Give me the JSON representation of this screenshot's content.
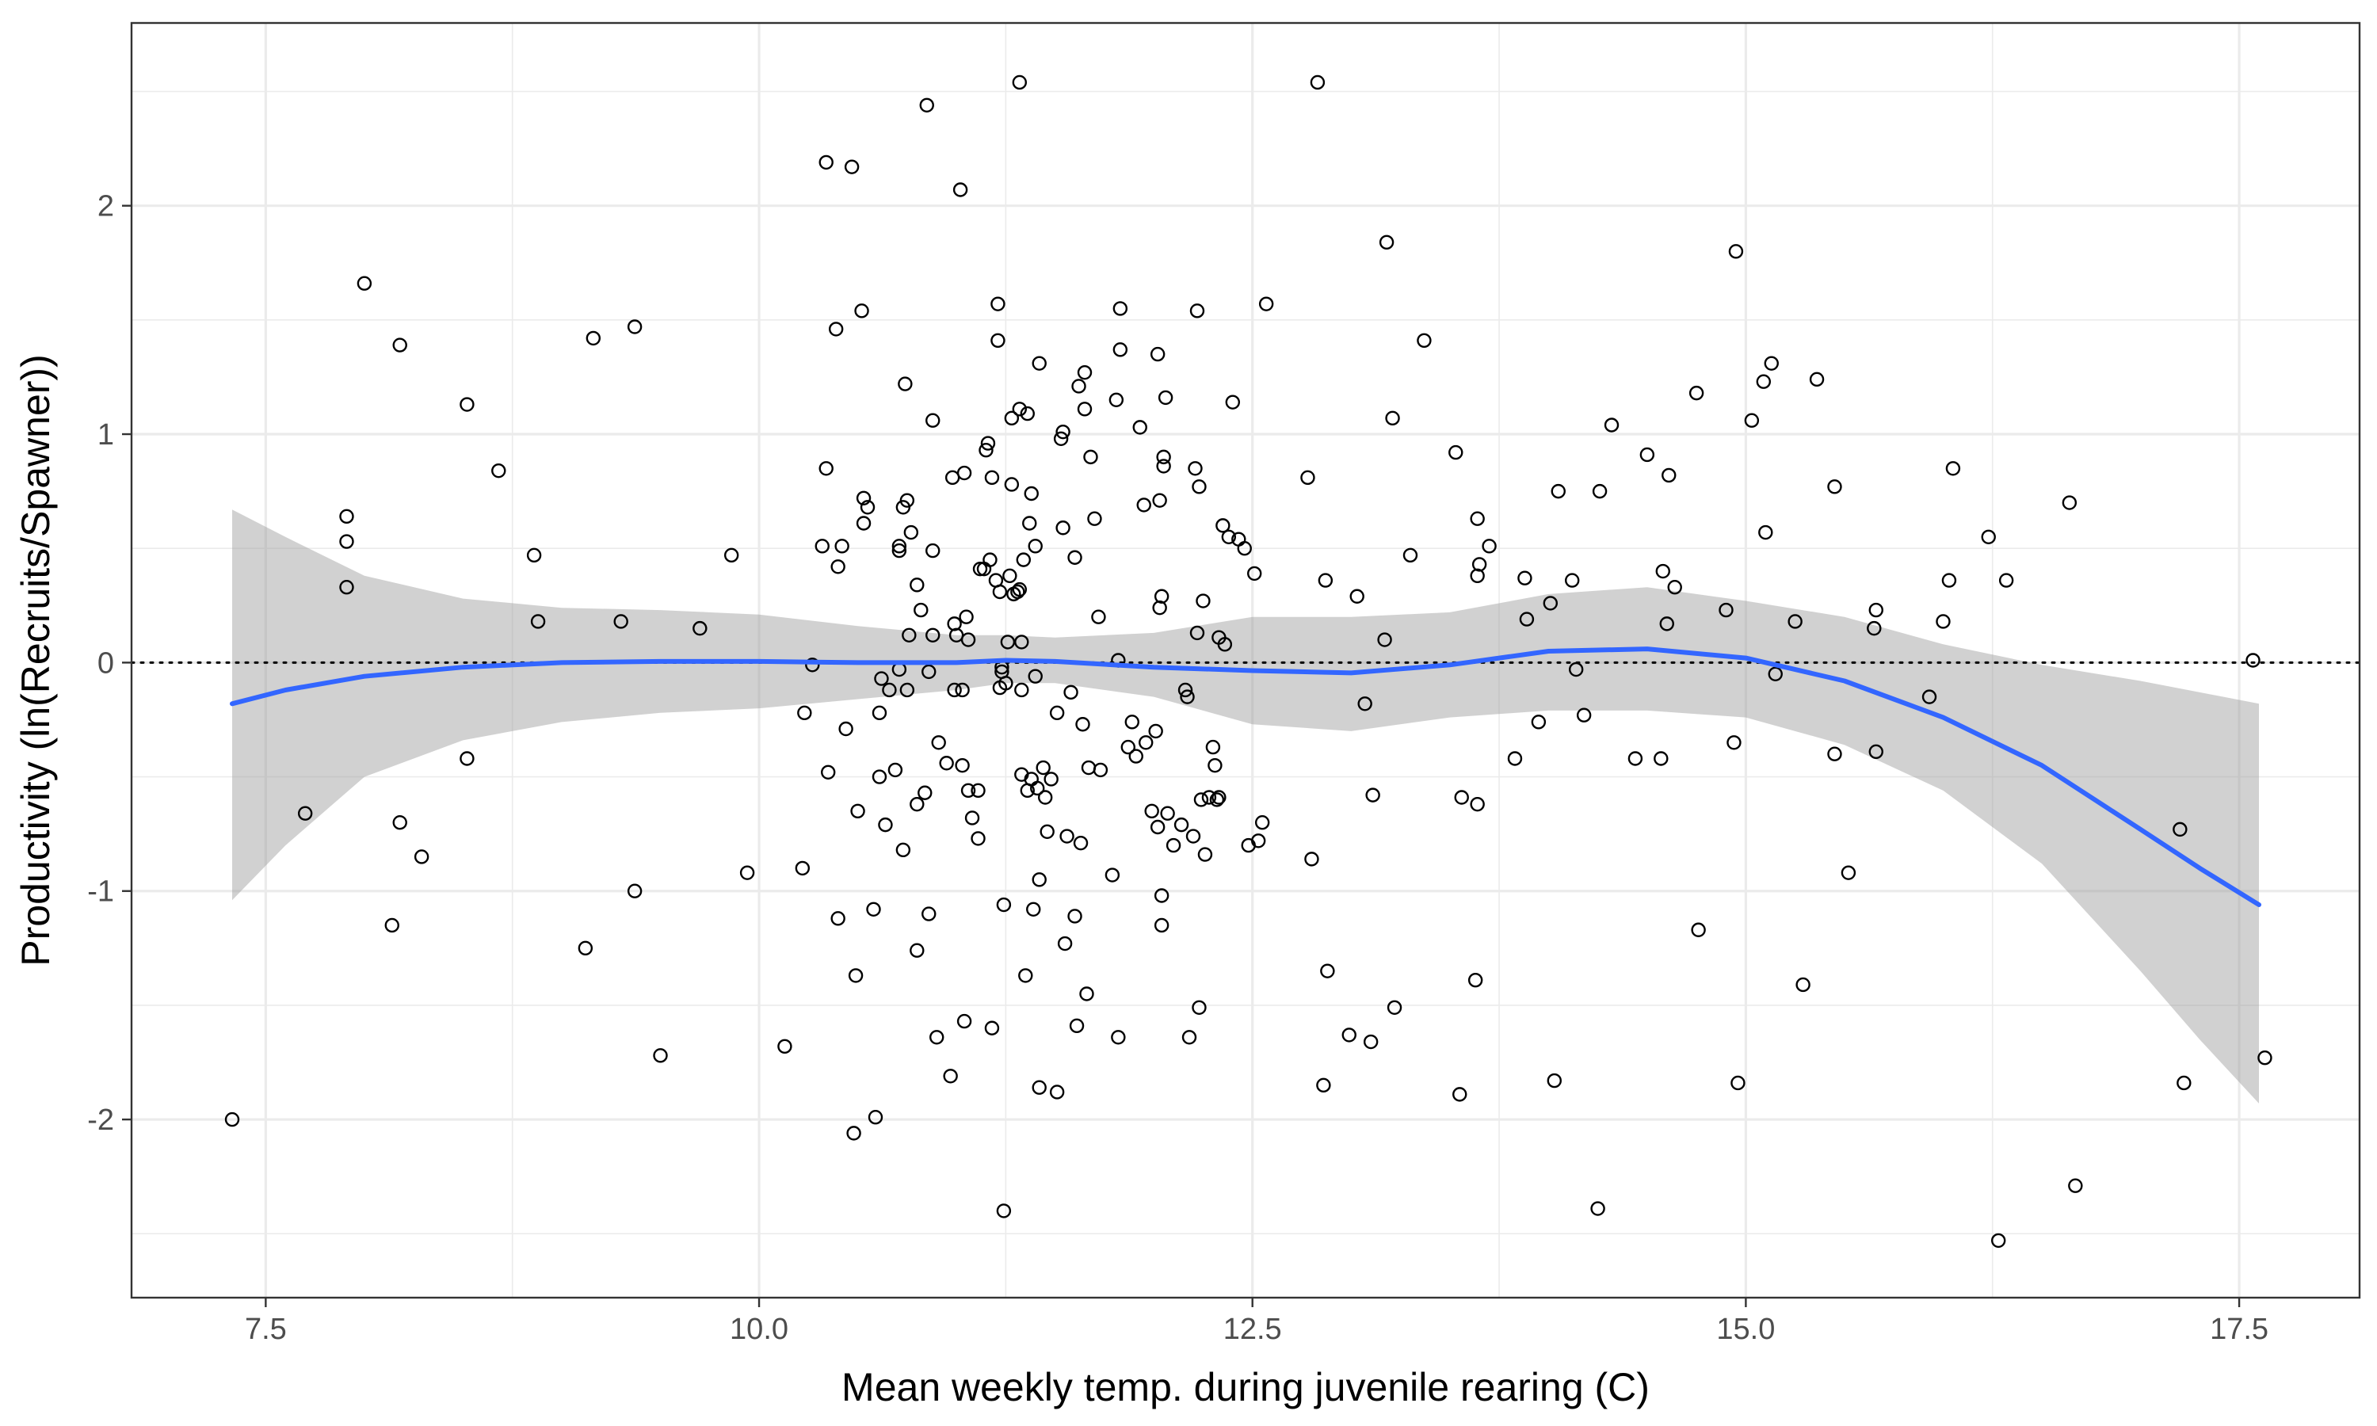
{
  "chart_data": {
    "type": "scatter",
    "title": "",
    "xlabel": "Mean weekly temp. during juvenile rearing (C)",
    "ylabel": "Productivity (ln(Recruits/Spawner))",
    "xlim": [
      6.82,
      18.11
    ],
    "ylim": [
      -2.78,
      2.8
    ],
    "x_ticks": [
      7.5,
      10.0,
      12.5,
      15.0,
      17.5
    ],
    "x_tick_labels": [
      "7.5",
      "10.0",
      "12.5",
      "15.0",
      "17.5"
    ],
    "y_ticks": [
      -2,
      -1,
      0,
      1,
      2
    ],
    "y_tick_labels": [
      "-2",
      "-1",
      "0",
      "1",
      "2"
    ],
    "grid": true,
    "reference_line": {
      "y": 0,
      "style": "dotted",
      "color": "#000000"
    },
    "points": [
      {
        "x": 7.33,
        "y": -2.0
      },
      {
        "x": 7.7,
        "y": -0.66
      },
      {
        "x": 7.91,
        "y": 0.64
      },
      {
        "x": 7.91,
        "y": 0.53
      },
      {
        "x": 7.91,
        "y": 0.33
      },
      {
        "x": 8.0,
        "y": 1.66
      },
      {
        "x": 8.14,
        "y": -1.15
      },
      {
        "x": 8.18,
        "y": 1.39
      },
      {
        "x": 8.18,
        "y": -0.7
      },
      {
        "x": 8.29,
        "y": -0.85
      },
      {
        "x": 8.52,
        "y": 1.13
      },
      {
        "x": 8.52,
        "y": -0.42
      },
      {
        "x": 8.68,
        "y": 0.84
      },
      {
        "x": 8.86,
        "y": 0.47
      },
      {
        "x": 8.88,
        "y": 0.18
      },
      {
        "x": 9.12,
        "y": -1.25
      },
      {
        "x": 9.16,
        "y": 1.42
      },
      {
        "x": 9.3,
        "y": 0.18
      },
      {
        "x": 9.37,
        "y": 1.47
      },
      {
        "x": 9.37,
        "y": -1.0
      },
      {
        "x": 9.5,
        "y": -1.72
      },
      {
        "x": 9.7,
        "y": 0.15
      },
      {
        "x": 9.86,
        "y": 0.47
      },
      {
        "x": 9.94,
        "y": -0.92
      },
      {
        "x": 10.13,
        "y": -1.68
      },
      {
        "x": 10.22,
        "y": -0.9
      },
      {
        "x": 10.23,
        "y": -0.22
      },
      {
        "x": 10.27,
        "y": -0.01
      },
      {
        "x": 10.32,
        "y": 0.51
      },
      {
        "x": 10.34,
        "y": 2.19
      },
      {
        "x": 10.35,
        "y": -0.48
      },
      {
        "x": 10.34,
        "y": 0.85
      },
      {
        "x": 10.39,
        "y": 1.46
      },
      {
        "x": 10.4,
        "y": -1.12
      },
      {
        "x": 10.4,
        "y": 0.42
      },
      {
        "x": 10.42,
        "y": 0.51
      },
      {
        "x": 10.44,
        "y": -0.29
      },
      {
        "x": 10.47,
        "y": 2.17
      },
      {
        "x": 10.48,
        "y": -2.06
      },
      {
        "x": 10.49,
        "y": -1.37
      },
      {
        "x": 10.5,
        "y": -0.65
      },
      {
        "x": 10.52,
        "y": 1.54
      },
      {
        "x": 10.53,
        "y": 0.72
      },
      {
        "x": 10.53,
        "y": 0.61
      },
      {
        "x": 10.55,
        "y": 0.68
      },
      {
        "x": 10.58,
        "y": -1.08
      },
      {
        "x": 10.59,
        "y": -1.99
      },
      {
        "x": 10.61,
        "y": -0.5
      },
      {
        "x": 10.61,
        "y": -0.22
      },
      {
        "x": 10.62,
        "y": -0.07
      },
      {
        "x": 10.64,
        "y": -0.71
      },
      {
        "x": 10.66,
        "y": -0.12
      },
      {
        "x": 10.69,
        "y": -0.47
      },
      {
        "x": 10.71,
        "y": 0.49
      },
      {
        "x": 10.71,
        "y": 0.51
      },
      {
        "x": 10.71,
        "y": -0.03
      },
      {
        "x": 10.73,
        "y": 0.68
      },
      {
        "x": 10.73,
        "y": -0.82
      },
      {
        "x": 10.74,
        "y": 1.22
      },
      {
        "x": 10.75,
        "y": 0.71
      },
      {
        "x": 10.75,
        "y": -0.12
      },
      {
        "x": 10.76,
        "y": 0.12
      },
      {
        "x": 10.77,
        "y": 0.57
      },
      {
        "x": 10.8,
        "y": 0.34
      },
      {
        "x": 10.8,
        "y": -0.62
      },
      {
        "x": 10.8,
        "y": -1.26
      },
      {
        "x": 10.82,
        "y": 0.23
      },
      {
        "x": 10.84,
        "y": -0.57
      },
      {
        "x": 10.85,
        "y": 2.44
      },
      {
        "x": 10.86,
        "y": -0.04
      },
      {
        "x": 10.86,
        "y": -1.1
      },
      {
        "x": 10.88,
        "y": 1.06
      },
      {
        "x": 10.88,
        "y": 0.49
      },
      {
        "x": 10.88,
        "y": 0.12
      },
      {
        "x": 10.9,
        "y": -1.64
      },
      {
        "x": 10.91,
        "y": -0.35
      },
      {
        "x": 10.95,
        "y": -0.44
      },
      {
        "x": 10.97,
        "y": -1.81
      },
      {
        "x": 10.98,
        "y": 0.81
      },
      {
        "x": 10.99,
        "y": 0.17
      },
      {
        "x": 10.99,
        "y": -0.12
      },
      {
        "x": 11.0,
        "y": 0.12
      },
      {
        "x": 11.02,
        "y": 2.07
      },
      {
        "x": 11.03,
        "y": -0.45
      },
      {
        "x": 11.03,
        "y": -0.12
      },
      {
        "x": 11.04,
        "y": 0.83
      },
      {
        "x": 11.04,
        "y": -1.57
      },
      {
        "x": 11.05,
        "y": 0.2
      },
      {
        "x": 11.06,
        "y": -0.56
      },
      {
        "x": 11.06,
        "y": 0.1
      },
      {
        "x": 11.08,
        "y": -0.68
      },
      {
        "x": 11.11,
        "y": -0.77
      },
      {
        "x": 11.11,
        "y": -0.56
      },
      {
        "x": 11.12,
        "y": 0.41
      },
      {
        "x": 11.14,
        "y": 0.41
      },
      {
        "x": 11.15,
        "y": 0.93
      },
      {
        "x": 11.16,
        "y": 0.96
      },
      {
        "x": 11.17,
        "y": 0.45
      },
      {
        "x": 11.18,
        "y": -1.6
      },
      {
        "x": 11.18,
        "y": 0.81
      },
      {
        "x": 11.2,
        "y": 0.36
      },
      {
        "x": 11.21,
        "y": 1.57
      },
      {
        "x": 11.21,
        "y": 1.41
      },
      {
        "x": 11.22,
        "y": 0.31
      },
      {
        "x": 11.22,
        "y": -0.11
      },
      {
        "x": 11.23,
        "y": -0.04
      },
      {
        "x": 11.23,
        "y": -0.02
      },
      {
        "x": 11.24,
        "y": -1.06
      },
      {
        "x": 11.24,
        "y": -2.4
      },
      {
        "x": 11.25,
        "y": -0.09
      },
      {
        "x": 11.26,
        "y": 0.09
      },
      {
        "x": 11.27,
        "y": 0.38
      },
      {
        "x": 11.28,
        "y": 0.78
      },
      {
        "x": 11.28,
        "y": 1.07
      },
      {
        "x": 11.29,
        "y": 0.3
      },
      {
        "x": 11.31,
        "y": 0.31
      },
      {
        "x": 11.32,
        "y": 2.54
      },
      {
        "x": 11.32,
        "y": 1.11
      },
      {
        "x": 11.32,
        "y": 0.32
      },
      {
        "x": 11.33,
        "y": -0.12
      },
      {
        "x": 11.33,
        "y": 0.09
      },
      {
        "x": 11.33,
        "y": -0.49
      },
      {
        "x": 11.34,
        "y": 0.45
      },
      {
        "x": 11.35,
        "y": -1.37
      },
      {
        "x": 11.36,
        "y": 1.09
      },
      {
        "x": 11.36,
        "y": -0.56
      },
      {
        "x": 11.37,
        "y": 0.61
      },
      {
        "x": 11.38,
        "y": 0.74
      },
      {
        "x": 11.38,
        "y": -0.51
      },
      {
        "x": 11.39,
        "y": -1.08
      },
      {
        "x": 11.4,
        "y": 0.51
      },
      {
        "x": 11.4,
        "y": -0.06
      },
      {
        "x": 11.41,
        "y": -0.55
      },
      {
        "x": 11.42,
        "y": 1.31
      },
      {
        "x": 11.42,
        "y": -0.95
      },
      {
        "x": 11.42,
        "y": -1.86
      },
      {
        "x": 11.44,
        "y": -0.46
      },
      {
        "x": 11.45,
        "y": -0.59
      },
      {
        "x": 11.46,
        "y": -0.74
      },
      {
        "x": 11.48,
        "y": -0.51
      },
      {
        "x": 11.51,
        "y": -0.22
      },
      {
        "x": 11.51,
        "y": -1.88
      },
      {
        "x": 11.53,
        "y": 0.98
      },
      {
        "x": 11.54,
        "y": 1.01
      },
      {
        "x": 11.54,
        "y": 0.59
      },
      {
        "x": 11.55,
        "y": -1.23
      },
      {
        "x": 11.56,
        "y": -0.76
      },
      {
        "x": 11.58,
        "y": -0.13
      },
      {
        "x": 11.6,
        "y": -1.11
      },
      {
        "x": 11.6,
        "y": 0.46
      },
      {
        "x": 11.61,
        "y": -1.59
      },
      {
        "x": 11.62,
        "y": 1.21
      },
      {
        "x": 11.63,
        "y": -0.79
      },
      {
        "x": 11.64,
        "y": -0.27
      },
      {
        "x": 11.65,
        "y": 1.27
      },
      {
        "x": 11.65,
        "y": 1.11
      },
      {
        "x": 11.66,
        "y": -1.45
      },
      {
        "x": 11.67,
        "y": -0.46
      },
      {
        "x": 11.68,
        "y": 0.9
      },
      {
        "x": 11.7,
        "y": 0.63
      },
      {
        "x": 11.72,
        "y": 0.2
      },
      {
        "x": 11.73,
        "y": -0.47
      },
      {
        "x": 11.79,
        "y": -0.93
      },
      {
        "x": 11.81,
        "y": 1.15
      },
      {
        "x": 11.82,
        "y": -1.64
      },
      {
        "x": 11.82,
        "y": 0.01
      },
      {
        "x": 11.83,
        "y": 1.55
      },
      {
        "x": 11.83,
        "y": 1.37
      },
      {
        "x": 11.87,
        "y": -0.37
      },
      {
        "x": 11.89,
        "y": -0.26
      },
      {
        "x": 11.91,
        "y": -0.41
      },
      {
        "x": 11.93,
        "y": 1.03
      },
      {
        "x": 11.95,
        "y": 0.69
      },
      {
        "x": 11.96,
        "y": -0.35
      },
      {
        "x": 11.99,
        "y": -0.65
      },
      {
        "x": 12.01,
        "y": -0.3
      },
      {
        "x": 12.02,
        "y": -0.72
      },
      {
        "x": 12.02,
        "y": 1.35
      },
      {
        "x": 12.03,
        "y": 0.71
      },
      {
        "x": 12.03,
        "y": 0.24
      },
      {
        "x": 12.04,
        "y": 0.29
      },
      {
        "x": 12.04,
        "y": -1.02
      },
      {
        "x": 12.04,
        "y": -1.15
      },
      {
        "x": 12.05,
        "y": 0.86
      },
      {
        "x": 12.05,
        "y": 0.9
      },
      {
        "x": 12.06,
        "y": 1.16
      },
      {
        "x": 12.07,
        "y": -0.66
      },
      {
        "x": 12.1,
        "y": -0.8
      },
      {
        "x": 12.14,
        "y": -0.71
      },
      {
        "x": 12.16,
        "y": -0.12
      },
      {
        "x": 12.17,
        "y": -0.15
      },
      {
        "x": 12.18,
        "y": -1.64
      },
      {
        "x": 12.2,
        "y": -0.76
      },
      {
        "x": 12.21,
        "y": 0.85
      },
      {
        "x": 12.22,
        "y": 0.13
      },
      {
        "x": 12.22,
        "y": 1.54
      },
      {
        "x": 12.23,
        "y": 0.77
      },
      {
        "x": 12.23,
        "y": -1.51
      },
      {
        "x": 12.24,
        "y": -0.6
      },
      {
        "x": 12.25,
        "y": 0.27
      },
      {
        "x": 12.26,
        "y": -0.84
      },
      {
        "x": 12.28,
        "y": -0.59
      },
      {
        "x": 12.3,
        "y": -0.37
      },
      {
        "x": 12.31,
        "y": -0.45
      },
      {
        "x": 12.32,
        "y": -0.6
      },
      {
        "x": 12.33,
        "y": -0.59
      },
      {
        "x": 12.33,
        "y": 0.11
      },
      {
        "x": 12.35,
        "y": 0.6
      },
      {
        "x": 12.36,
        "y": 0.08
      },
      {
        "x": 12.38,
        "y": 0.55
      },
      {
        "x": 12.4,
        "y": 1.14
      },
      {
        "x": 12.43,
        "y": 0.54
      },
      {
        "x": 12.46,
        "y": 0.5
      },
      {
        "x": 12.48,
        "y": -0.8
      },
      {
        "x": 12.51,
        "y": 0.39
      },
      {
        "x": 12.53,
        "y": -0.78
      },
      {
        "x": 12.55,
        "y": -0.7
      },
      {
        "x": 12.57,
        "y": 1.57
      },
      {
        "x": 12.78,
        "y": 0.81
      },
      {
        "x": 12.8,
        "y": -0.86
      },
      {
        "x": 12.83,
        "y": 2.54
      },
      {
        "x": 12.86,
        "y": -1.85
      },
      {
        "x": 12.87,
        "y": 0.36
      },
      {
        "x": 12.88,
        "y": -1.35
      },
      {
        "x": 12.99,
        "y": -1.63
      },
      {
        "x": 13.03,
        "y": 0.29
      },
      {
        "x": 13.07,
        "y": -0.18
      },
      {
        "x": 13.1,
        "y": -1.66
      },
      {
        "x": 13.11,
        "y": -0.58
      },
      {
        "x": 13.17,
        "y": 0.1
      },
      {
        "x": 13.18,
        "y": 1.84
      },
      {
        "x": 13.21,
        "y": 1.07
      },
      {
        "x": 13.22,
        "y": -1.51
      },
      {
        "x": 13.3,
        "y": 0.47
      },
      {
        "x": 13.37,
        "y": 1.41
      },
      {
        "x": 13.53,
        "y": 0.92
      },
      {
        "x": 13.55,
        "y": -1.89
      },
      {
        "x": 13.56,
        "y": -0.59
      },
      {
        "x": 13.63,
        "y": -1.39
      },
      {
        "x": 13.64,
        "y": 0.63
      },
      {
        "x": 13.64,
        "y": 0.38
      },
      {
        "x": 13.64,
        "y": -0.62
      },
      {
        "x": 13.65,
        "y": 0.43
      },
      {
        "x": 13.7,
        "y": 0.51
      },
      {
        "x": 13.83,
        "y": -0.42
      },
      {
        "x": 13.88,
        "y": 0.37
      },
      {
        "x": 13.89,
        "y": 0.19
      },
      {
        "x": 13.95,
        "y": -0.26
      },
      {
        "x": 14.01,
        "y": 0.26
      },
      {
        "x": 14.03,
        "y": -1.83
      },
      {
        "x": 14.05,
        "y": 0.75
      },
      {
        "x": 14.12,
        "y": 0.36
      },
      {
        "x": 14.14,
        "y": -0.03
      },
      {
        "x": 14.18,
        "y": -0.23
      },
      {
        "x": 14.25,
        "y": -2.39
      },
      {
        "x": 14.26,
        "y": 0.75
      },
      {
        "x": 14.32,
        "y": 1.04
      },
      {
        "x": 14.44,
        "y": -0.42
      },
      {
        "x": 14.5,
        "y": 0.91
      },
      {
        "x": 14.57,
        "y": -0.42
      },
      {
        "x": 14.58,
        "y": 0.4
      },
      {
        "x": 14.6,
        "y": 0.17
      },
      {
        "x": 14.61,
        "y": 0.82
      },
      {
        "x": 14.64,
        "y": 0.33
      },
      {
        "x": 14.75,
        "y": 1.18
      },
      {
        "x": 14.76,
        "y": -1.17
      },
      {
        "x": 14.9,
        "y": 0.23
      },
      {
        "x": 14.94,
        "y": -0.35
      },
      {
        "x": 14.95,
        "y": 1.8
      },
      {
        "x": 14.96,
        "y": -1.84
      },
      {
        "x": 15.03,
        "y": 1.06
      },
      {
        "x": 15.09,
        "y": 1.23
      },
      {
        "x": 15.1,
        "y": 0.57
      },
      {
        "x": 15.13,
        "y": 1.31
      },
      {
        "x": 15.15,
        "y": -0.05
      },
      {
        "x": 15.25,
        "y": 0.18
      },
      {
        "x": 15.29,
        "y": -1.41
      },
      {
        "x": 15.36,
        "y": 1.24
      },
      {
        "x": 15.45,
        "y": 0.77
      },
      {
        "x": 15.45,
        "y": -0.4
      },
      {
        "x": 15.52,
        "y": -0.92
      },
      {
        "x": 15.65,
        "y": 0.15
      },
      {
        "x": 15.66,
        "y": 0.23
      },
      {
        "x": 15.66,
        "y": -0.39
      },
      {
        "x": 15.93,
        "y": -0.15
      },
      {
        "x": 16.0,
        "y": 0.18
      },
      {
        "x": 16.03,
        "y": 0.36
      },
      {
        "x": 16.05,
        "y": 0.85
      },
      {
        "x": 16.23,
        "y": 0.55
      },
      {
        "x": 16.28,
        "y": -2.53
      },
      {
        "x": 16.32,
        "y": 0.36
      },
      {
        "x": 16.64,
        "y": 0.7
      },
      {
        "x": 16.67,
        "y": -2.29
      },
      {
        "x": 17.2,
        "y": -0.73
      },
      {
        "x": 17.22,
        "y": -1.84
      },
      {
        "x": 17.57,
        "y": 0.01
      },
      {
        "x": 17.63,
        "y": -1.73
      }
    ],
    "smooth_line": {
      "color": "#3366ff",
      "x": [
        7.33,
        7.6,
        8.0,
        8.5,
        9.0,
        9.5,
        10.0,
        10.5,
        11.0,
        11.25,
        11.5,
        12.0,
        12.5,
        13.0,
        13.5,
        14.0,
        14.5,
        15.0,
        15.5,
        16.0,
        16.5,
        17.0,
        17.3,
        17.6
      ],
      "y": [
        -0.18,
        -0.12,
        -0.06,
        -0.02,
        0.0,
        0.005,
        0.005,
        0.0,
        0.0,
        0.01,
        0.005,
        -0.02,
        -0.035,
        -0.045,
        -0.01,
        0.05,
        0.06,
        0.02,
        -0.08,
        -0.24,
        -0.45,
        -0.73,
        -0.9,
        -1.06
      ]
    },
    "confidence_band": {
      "color": "#999999",
      "opacity": 0.45,
      "x": [
        7.33,
        7.6,
        8.0,
        8.5,
        9.0,
        9.5,
        10.0,
        10.5,
        11.0,
        11.25,
        11.5,
        12.0,
        12.5,
        13.0,
        13.5,
        14.0,
        14.5,
        15.0,
        15.5,
        16.0,
        16.5,
        17.0,
        17.3,
        17.6
      ],
      "upper": [
        0.67,
        0.55,
        0.38,
        0.28,
        0.24,
        0.23,
        0.21,
        0.16,
        0.12,
        0.12,
        0.11,
        0.13,
        0.2,
        0.2,
        0.22,
        0.3,
        0.33,
        0.27,
        0.2,
        0.08,
        -0.01,
        -0.08,
        -0.13,
        -0.18
      ],
      "lower": [
        -1.04,
        -0.8,
        -0.5,
        -0.34,
        -0.26,
        -0.22,
        -0.2,
        -0.16,
        -0.12,
        -0.09,
        -0.09,
        -0.15,
        -0.27,
        -0.3,
        -0.24,
        -0.21,
        -0.21,
        -0.24,
        -0.36,
        -0.56,
        -0.88,
        -1.35,
        -1.65,
        -1.93
      ]
    }
  }
}
